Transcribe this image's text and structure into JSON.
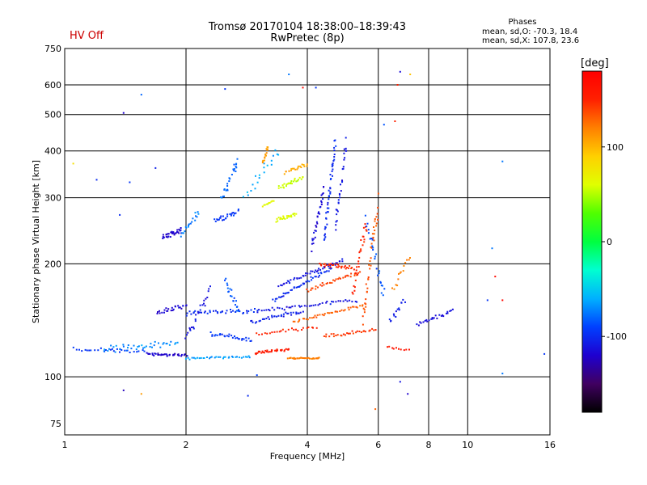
{
  "header": {
    "hv_status": "HV Off",
    "title_line1": "Tromsø 20170104 18:38:00–18:39:43",
    "title_line2": "RwPretec (8p)",
    "phase_heading": "Phases",
    "phase_o": "mean, sd,O: -70.3, 18.4",
    "phase_x": "mean, sd,X: 107.8, 23.6"
  },
  "colorbar": {
    "unit_label": "[deg]",
    "ticks": [
      {
        "label": "100",
        "value": 100
      },
      {
        "label": "0",
        "value": 0
      },
      {
        "label": "-100",
        "value": -100
      }
    ],
    "range": [
      -180,
      180
    ],
    "colors": [
      "#000000",
      "#400060",
      "#1e00d0",
      "#0040ff",
      "#00b0ff",
      "#00ffd0",
      "#00ff40",
      "#50ff00",
      "#e0ff00",
      "#ffd000",
      "#ff8000",
      "#ff2000",
      "#ff0000"
    ]
  },
  "chart_data": {
    "type": "scatter",
    "xlabel": "Frequency [MHz]",
    "ylabel": "Stationary phase Virtual Height [km]",
    "xscale": "log",
    "yscale": "log",
    "xlim": [
      1,
      16
    ],
    "ylim": [
      70,
      750
    ],
    "x_ticks": [
      {
        "label": "1",
        "value": 1
      },
      {
        "label": "2",
        "value": 2
      },
      {
        "label": "4",
        "value": 4
      },
      {
        "label": "6",
        "value": 6
      },
      {
        "label": "8",
        "value": 8
      },
      {
        "label": "10",
        "value": 10
      },
      {
        "label": "16",
        "value": 16
      }
    ],
    "y_ticks": [
      {
        "label": "75",
        "value": 75
      },
      {
        "label": "100",
        "value": 100
      },
      {
        "label": "200",
        "value": 200
      },
      {
        "label": "300",
        "value": 300
      },
      {
        "label": "400",
        "value": 400
      },
      {
        "label": "500",
        "value": 500
      },
      {
        "label": "600",
        "value": 600
      },
      {
        "label": "750",
        "value": 750
      }
    ],
    "x_gridlines": [
      2,
      4,
      6,
      8,
      10
    ],
    "y_gridlines": [
      100,
      200,
      300,
      400,
      500,
      600
    ],
    "grid": true,
    "series": [
      {
        "mode": "O",
        "phase_mean": -70.3,
        "phase_sd": 18.4
      },
      {
        "mode": "X",
        "phase_mean": 107.8,
        "phase_sd": 23.6
      }
    ],
    "traces": [
      {
        "f": [
          1.05,
          1.6
        ],
        "h": [
          118,
          117
        ],
        "phase": -95,
        "n": 28,
        "jf": 0.015,
        "jh": 0.025
      },
      {
        "f": [
          1.25,
          1.9
        ],
        "h": [
          118,
          123
        ],
        "phase": -70,
        "n": 40,
        "jf": 0.012,
        "jh": 0.03
      },
      {
        "f": [
          1.6,
          2.0
        ],
        "h": [
          115,
          114
        ],
        "phase": -120,
        "n": 35,
        "jf": 0.01,
        "jh": 0.01
      },
      {
        "f": [
          2.0,
          2.9
        ],
        "h": [
          112,
          113
        ],
        "phase": -65,
        "n": 35,
        "jf": 0.01,
        "jh": 0.01
      },
      {
        "f": [
          1.7,
          2.0
        ],
        "h": [
          148,
          155
        ],
        "phase": -120,
        "n": 25,
        "jf": 0.015,
        "jh": 0.02
      },
      {
        "f": [
          2.0,
          3.0
        ],
        "h": [
          148,
          150
        ],
        "phase": -100,
        "n": 40,
        "jf": 0.015,
        "jh": 0.02
      },
      {
        "f": [
          2.0,
          2.3
        ],
        "h": [
          125,
          170
        ],
        "phase": -110,
        "n": 25,
        "jf": 0.01,
        "jh": 0.05
      },
      {
        "f": [
          2.3,
          2.9
        ],
        "h": [
          130,
          125
        ],
        "phase": -95,
        "n": 30,
        "jf": 0.01,
        "jh": 0.02
      },
      {
        "f": [
          1.75,
          1.95
        ],
        "h": [
          235,
          245
        ],
        "phase": -120,
        "n": 30,
        "jf": 0.012,
        "jh": 0.025
      },
      {
        "f": [
          1.95,
          2.15
        ],
        "h": [
          240,
          275
        ],
        "phase": -75,
        "n": 18,
        "jf": 0.01,
        "jh": 0.03
      },
      {
        "f": [
          2.35,
          2.7
        ],
        "h": [
          260,
          275
        ],
        "phase": -95,
        "n": 25,
        "jf": 0.01,
        "jh": 0.03
      },
      {
        "f": [
          2.45,
          2.7
        ],
        "h": [
          300,
          380
        ],
        "phase": -80,
        "n": 25,
        "jf": 0.02,
        "jh": 0.05
      },
      {
        "f": [
          2.8,
          3.4
        ],
        "h": [
          300,
          400
        ],
        "phase": -60,
        "n": 20,
        "jf": 0.02,
        "jh": 0.06
      },
      {
        "f": [
          2.5,
          2.7
        ],
        "h": [
          180,
          150
        ],
        "phase": -85,
        "n": 20,
        "jf": 0.01,
        "jh": 0.03
      },
      {
        "f": [
          3.1,
          3.2
        ],
        "h": [
          370,
          410
        ],
        "phase": 110,
        "n": 15,
        "jf": 0.008,
        "jh": 0.02
      },
      {
        "f": [
          3.4,
          3.9
        ],
        "h": [
          320,
          340
        ],
        "phase": 55,
        "n": 25,
        "jf": 0.01,
        "jh": 0.02
      },
      {
        "f": [
          3.35,
          3.75
        ],
        "h": [
          262,
          272
        ],
        "phase": 60,
        "n": 25,
        "jf": 0.008,
        "jh": 0.015
      },
      {
        "f": [
          3.5,
          4.0
        ],
        "h": [
          352,
          370
        ],
        "phase": 105,
        "n": 20,
        "jf": 0.01,
        "jh": 0.02
      },
      {
        "f": [
          3.1,
          3.3
        ],
        "h": [
          285,
          295
        ],
        "phase": 65,
        "n": 10,
        "jf": 0.005,
        "jh": 0.01
      },
      {
        "f": [
          2.95,
          3.6
        ],
        "h": [
          116,
          118
        ],
        "phase": 155,
        "n": 35,
        "jf": 0.015,
        "jh": 0.015
      },
      {
        "f": [
          3.6,
          4.3
        ],
        "h": [
          112,
          112
        ],
        "phase": 120,
        "n": 35,
        "jf": 0.01,
        "jh": 0.006
      },
      {
        "f": [
          3.4,
          4.9
        ],
        "h": [
          175,
          205
        ],
        "phase": -110,
        "n": 45,
        "jf": 0.01,
        "jh": 0.015
      },
      {
        "f": [
          3.3,
          4.6
        ],
        "h": [
          160,
          195
        ],
        "phase": -100,
        "n": 45,
        "jf": 0.01,
        "jh": 0.015
      },
      {
        "f": [
          3.0,
          5.3
        ],
        "h": [
          150,
          160
        ],
        "phase": -110,
        "n": 45,
        "jf": 0.01,
        "jh": 0.015
      },
      {
        "f": [
          2.9,
          3.9
        ],
        "h": [
          140,
          150
        ],
        "phase": -105,
        "n": 35,
        "jf": 0.01,
        "jh": 0.02
      },
      {
        "f": [
          4.3,
          5.2
        ],
        "h": [
          200,
          195
        ],
        "phase": 150,
        "n": 30,
        "jf": 0.01,
        "jh": 0.02
      },
      {
        "f": [
          4.0,
          5.4
        ],
        "h": [
          170,
          190
        ],
        "phase": 140,
        "n": 35,
        "jf": 0.01,
        "jh": 0.015
      },
      {
        "f": [
          3.7,
          5.5
        ],
        "h": [
          140,
          155
        ],
        "phase": 130,
        "n": 40,
        "jf": 0.01,
        "jh": 0.015
      },
      {
        "f": [
          3.0,
          4.2
        ],
        "h": [
          130,
          135
        ],
        "phase": 150,
        "n": 25,
        "jf": 0.01,
        "jh": 0.015
      },
      {
        "f": [
          4.4,
          5.9
        ],
        "h": [
          128,
          133
        ],
        "phase": 145,
        "n": 30,
        "jf": 0.01,
        "jh": 0.015
      },
      {
        "f": [
          5.5,
          6.0
        ],
        "h": [
          140,
          290
        ],
        "phase": 135,
        "n": 40,
        "jf": 0.008,
        "jh": 0.1
      },
      {
        "f": [
          5.2,
          5.6
        ],
        "h": [
          170,
          260
        ],
        "phase": 150,
        "n": 30,
        "jf": 0.008,
        "jh": 0.08
      },
      {
        "f": [
          4.4,
          4.7
        ],
        "h": [
          230,
          420
        ],
        "phase": -100,
        "n": 45,
        "jf": 0.008,
        "jh": 0.06
      },
      {
        "f": [
          4.7,
          5.0
        ],
        "h": [
          250,
          420
        ],
        "phase": -110,
        "n": 30,
        "jf": 0.008,
        "jh": 0.06
      },
      {
        "f": [
          4.1,
          4.4
        ],
        "h": [
          220,
          320
        ],
        "phase": -115,
        "n": 30,
        "jf": 0.008,
        "jh": 0.04
      },
      {
        "f": [
          5.6,
          6.2
        ],
        "h": [
          260,
          165
        ],
        "phase": -85,
        "n": 25,
        "jf": 0.01,
        "jh": 0.08
      },
      {
        "f": [
          6.5,
          7.2
        ],
        "h": [
          170,
          210
        ],
        "phase": 120,
        "n": 14,
        "jf": 0.01,
        "jh": 0.04
      },
      {
        "f": [
          6.4,
          7.0
        ],
        "h": [
          140,
          160
        ],
        "phase": -105,
        "n": 14,
        "jf": 0.015,
        "jh": 0.03
      },
      {
        "f": [
          7.5,
          9.2
        ],
        "h": [
          138,
          150
        ],
        "phase": -115,
        "n": 25,
        "jf": 0.01,
        "jh": 0.02
      },
      {
        "f": [
          6.3,
          7.1
        ],
        "h": [
          120,
          118
        ],
        "phase": 160,
        "n": 10,
        "jf": 0.01,
        "jh": 0.01
      }
    ],
    "scatter_points": [
      {
        "f": 1.05,
        "h": 370,
        "phase": 80
      },
      {
        "f": 1.2,
        "h": 335,
        "phase": -100
      },
      {
        "f": 1.4,
        "h": 505,
        "phase": -120
      },
      {
        "f": 1.45,
        "h": 330,
        "phase": -95
      },
      {
        "f": 1.55,
        "h": 565,
        "phase": -80
      },
      {
        "f": 1.68,
        "h": 360,
        "phase": -105
      },
      {
        "f": 1.4,
        "h": 92,
        "phase": -125
      },
      {
        "f": 1.55,
        "h": 90,
        "phase": 110
      },
      {
        "f": 1.37,
        "h": 270,
        "phase": -100
      },
      {
        "f": 2.5,
        "h": 585,
        "phase": -95
      },
      {
        "f": 3.6,
        "h": 640,
        "phase": -75
      },
      {
        "f": 3.9,
        "h": 590,
        "phase": 170
      },
      {
        "f": 4.2,
        "h": 590,
        "phase": -95
      },
      {
        "f": 6.8,
        "h": 650,
        "phase": -115
      },
      {
        "f": 7.2,
        "h": 640,
        "phase": 95
      },
      {
        "f": 6.7,
        "h": 600,
        "phase": 150
      },
      {
        "f": 12.2,
        "h": 375,
        "phase": -75
      },
      {
        "f": 11.5,
        "h": 220,
        "phase": -75
      },
      {
        "f": 11.7,
        "h": 185,
        "phase": 170
      },
      {
        "f": 12.2,
        "h": 160,
        "phase": 175
      },
      {
        "f": 11.2,
        "h": 160,
        "phase": -95
      },
      {
        "f": 12.2,
        "h": 102,
        "phase": -75
      },
      {
        "f": 15.5,
        "h": 115,
        "phase": -95
      },
      {
        "f": 7.1,
        "h": 90,
        "phase": -120
      },
      {
        "f": 6.8,
        "h": 97,
        "phase": -110
      },
      {
        "f": 5.9,
        "h": 82,
        "phase": 130
      },
      {
        "f": 2.85,
        "h": 89,
        "phase": -100
      },
      {
        "f": 3.0,
        "h": 101,
        "phase": -90
      },
      {
        "f": 6.2,
        "h": 470,
        "phase": -85
      },
      {
        "f": 6.6,
        "h": 480,
        "phase": 150
      }
    ]
  }
}
